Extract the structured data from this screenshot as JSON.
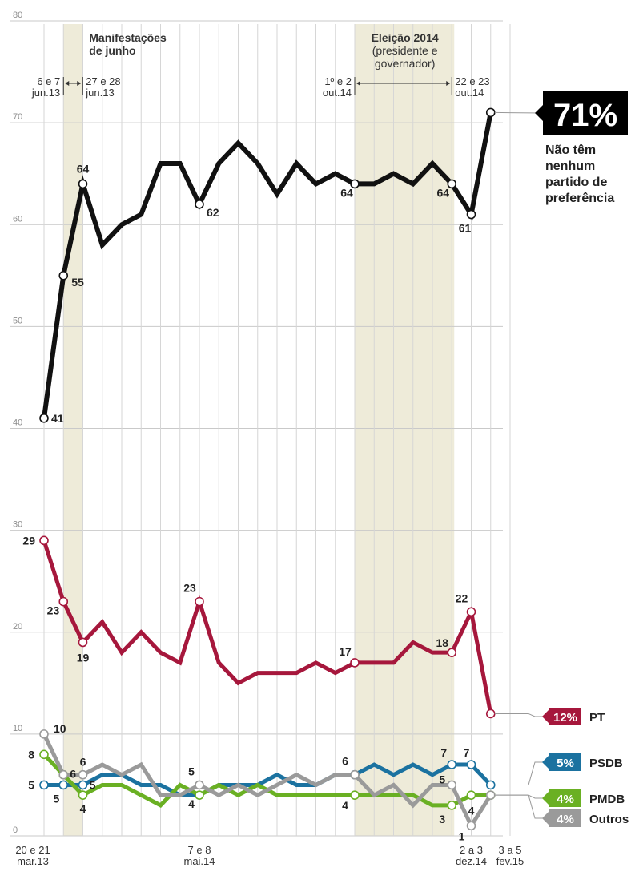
{
  "chart_data": {
    "type": "line",
    "ylim": [
      0,
      80
    ],
    "yticks": [
      "0",
      "10",
      "20",
      "30",
      "40",
      "50",
      "60",
      "70",
      "80"
    ],
    "grid": true,
    "x_labels": [
      {
        "index": 0,
        "lines": [
          "20 e 21",
          "mar.13"
        ]
      },
      {
        "index": 8,
        "lines": [
          "7 e 8",
          "mai.14"
        ]
      },
      {
        "index": 22,
        "lines": [
          "2 a 3",
          "dez.14"
        ]
      },
      {
        "index": 24,
        "lines": [
          "3 a 5",
          "fev.15"
        ]
      }
    ],
    "series": [
      {
        "key": "nenhum",
        "color": "#111111",
        "values": [
          41,
          55,
          64,
          58,
          60,
          61,
          66,
          66,
          62,
          66,
          68,
          66,
          63,
          66,
          64,
          65,
          64,
          64,
          65,
          64,
          66,
          64,
          61,
          71
        ],
        "markers": [
          0,
          1,
          2,
          8,
          16,
          21,
          22,
          23
        ],
        "labels": [
          {
            "i": 0,
            "text": "41",
            "dx": 9,
            "dy": 5,
            "anchor": "start"
          },
          {
            "i": 1,
            "text": "55",
            "dx": 10,
            "dy": 13,
            "anchor": "start"
          },
          {
            "i": 2,
            "text": "64",
            "dx": 0,
            "dy": -14,
            "anchor": "middle"
          },
          {
            "i": 8,
            "text": "62",
            "dx": 9,
            "dy": 15,
            "anchor": "start"
          },
          {
            "i": 16,
            "text": "64",
            "dx": -10,
            "dy": 16,
            "anchor": "middle"
          },
          {
            "i": 21,
            "text": "64",
            "dx": -11,
            "dy": 16,
            "anchor": "middle"
          },
          {
            "i": 22,
            "text": "61",
            "dx": -8,
            "dy": 22,
            "anchor": "middle"
          }
        ]
      },
      {
        "key": "pt",
        "name": "PT",
        "color": "#a6173c",
        "values": [
          29,
          23,
          19,
          21,
          18,
          20,
          18,
          17,
          23,
          17,
          15,
          16,
          16,
          16,
          17,
          16,
          17,
          17,
          17,
          19,
          18,
          18,
          22,
          12
        ],
        "markers": [
          0,
          1,
          2,
          8,
          16,
          21,
          22,
          23
        ],
        "labels": [
          {
            "i": 0,
            "text": "29",
            "dx": -11,
            "dy": 5,
            "anchor": "end"
          },
          {
            "i": 1,
            "text": "23",
            "dx": -5,
            "dy": 16,
            "anchor": "end"
          },
          {
            "i": 2,
            "text": "19",
            "dx": 0,
            "dy": 24,
            "anchor": "middle"
          },
          {
            "i": 8,
            "text": "23",
            "dx": -12,
            "dy": -12,
            "anchor": "middle"
          },
          {
            "i": 16,
            "text": "17",
            "dx": -12,
            "dy": -9,
            "anchor": "middle"
          },
          {
            "i": 21,
            "text": "18",
            "dx": -12,
            "dy": -7,
            "anchor": "middle"
          },
          {
            "i": 22,
            "text": "22",
            "dx": -12,
            "dy": -12,
            "anchor": "middle"
          }
        ]
      },
      {
        "key": "psdb",
        "name": "PSDB",
        "color": "#1b72a0",
        "values": [
          5,
          5,
          5,
          6,
          6,
          5,
          5,
          4,
          4,
          5,
          5,
          5,
          6,
          5,
          5,
          6,
          6,
          7,
          6,
          7,
          6,
          7,
          7,
          5
        ],
        "markers": [
          0,
          1,
          2,
          16,
          21,
          22,
          23
        ],
        "labels": [
          {
            "i": 0,
            "text": "5",
            "dx": -12,
            "dy": 5,
            "anchor": "end"
          },
          {
            "i": 1,
            "text": "5",
            "dx": -5,
            "dy": 22,
            "anchor": "end"
          },
          {
            "i": 2,
            "text": "5",
            "dx": 12,
            "dy": 5,
            "anchor": "middle"
          },
          {
            "i": 16,
            "text": "6",
            "dx": -12,
            "dy": -12,
            "anchor": "middle"
          },
          {
            "i": 21,
            "text": "7",
            "dx": -10,
            "dy": -10,
            "anchor": "middle"
          },
          {
            "i": 22,
            "text": "7",
            "dx": -6,
            "dy": -10,
            "anchor": "middle"
          }
        ]
      },
      {
        "key": "pmdb",
        "name": "PMDB",
        "color": "#6ab023",
        "values": [
          8,
          6,
          4,
          5,
          5,
          4,
          3,
          5,
          4,
          5,
          4,
          5,
          4,
          4,
          4,
          4,
          4,
          4,
          4,
          4,
          3,
          3,
          4,
          4
        ],
        "markers": [
          0,
          1,
          2,
          8,
          16,
          21,
          22,
          23
        ],
        "labels": [
          {
            "i": 0,
            "text": "8",
            "dx": -12,
            "dy": 5,
            "anchor": "end"
          },
          {
            "i": 2,
            "text": "4",
            "dx": 0,
            "dy": 22,
            "anchor": "middle"
          },
          {
            "i": 8,
            "text": "4",
            "dx": -10,
            "dy": 16,
            "anchor": "middle"
          },
          {
            "i": 16,
            "text": "4",
            "dx": -12,
            "dy": 18,
            "anchor": "middle"
          },
          {
            "i": 21,
            "text": "3",
            "dx": -12,
            "dy": 22,
            "anchor": "middle"
          }
        ]
      },
      {
        "key": "outros",
        "name": "Outros",
        "color": "#9a9a9a",
        "values": [
          10,
          6,
          6,
          7,
          6,
          7,
          4,
          4,
          5,
          4,
          5,
          4,
          5,
          6,
          5,
          6,
          6,
          4,
          5,
          3,
          5,
          5,
          1,
          4
        ],
        "markers": [
          0,
          1,
          2,
          8,
          16,
          21,
          22,
          23
        ],
        "labels": [
          {
            "i": 0,
            "text": "10",
            "dx": 12,
            "dy": -2,
            "anchor": "start"
          },
          {
            "i": 1,
            "text": "6",
            "dx": 8,
            "dy": 4,
            "anchor": "start"
          },
          {
            "i": 2,
            "text": "6",
            "dx": 0,
            "dy": -11,
            "anchor": "middle"
          },
          {
            "i": 8,
            "text": "5",
            "dx": -10,
            "dy": -12,
            "anchor": "middle"
          },
          {
            "i": 21,
            "text": "5",
            "dx": -12,
            "dy": -2,
            "anchor": "middle"
          },
          {
            "i": 22,
            "text": "4",
            "dx": 0,
            "dy": -14,
            "anchor": "middle"
          },
          {
            "i": 22,
            "text": "1",
            "dx": -12,
            "dy": 18,
            "anchor": "middle"
          }
        ]
      }
    ],
    "events": [
      {
        "name": "Manifestações de junho",
        "lines": [
          "Manifestações",
          "de junho"
        ],
        "from_index": 1,
        "to_index": 1,
        "left_label": [
          "6 e 7",
          "jun.13"
        ],
        "right_label": [
          "27 e 28",
          "jun.13"
        ]
      },
      {
        "name": "Eleição 2014 (presidente e governador)",
        "lines": [
          "Eleição 2014",
          "(presidente e",
          "governador)"
        ],
        "from_index": 16,
        "to_index": 21,
        "left_label": [
          "1º e 2",
          "out.14"
        ],
        "right_label": [
          "22 e 23",
          "out.14"
        ]
      }
    ],
    "final": [
      {
        "key": "nenhum",
        "badge": "71%",
        "note": [
          "Não têm",
          "nenhum",
          "partido de",
          "preferência"
        ]
      },
      {
        "key": "pt",
        "badge": "12%",
        "legend": "PT"
      },
      {
        "key": "psdb",
        "badge": "5%",
        "legend": "PSDB"
      },
      {
        "key": "pmdb",
        "badge": "4%",
        "legend": "PMDB"
      },
      {
        "key": "outros",
        "badge": "4%",
        "legend": "Outros"
      }
    ]
  }
}
